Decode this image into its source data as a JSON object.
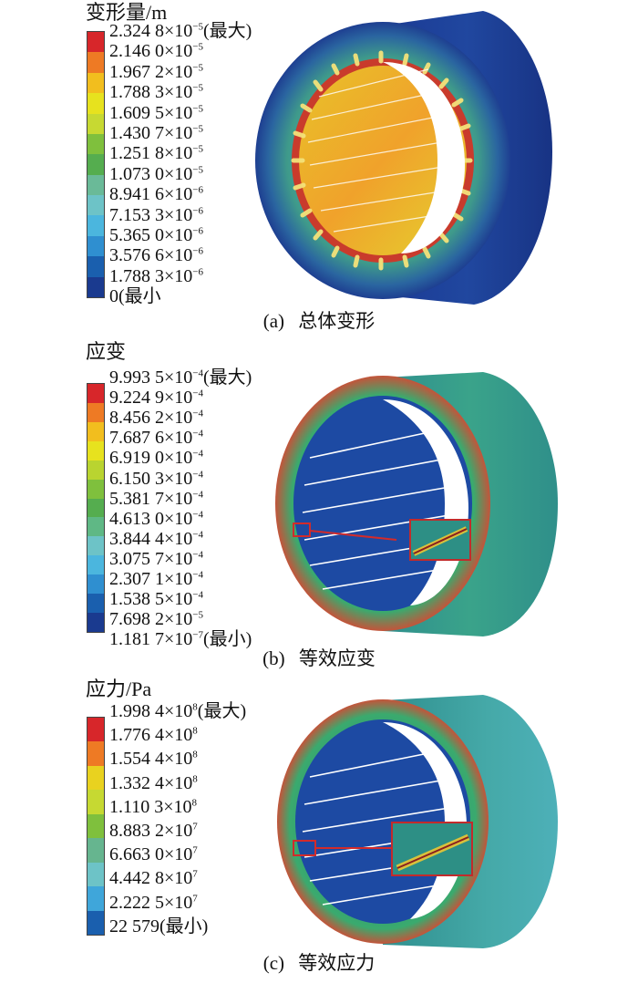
{
  "panels": [
    {
      "id": "a",
      "legend_title": "变形量/m",
      "caption_tag": "(a)",
      "caption_text": "总体变形",
      "legend_colors": [
        "#d7262a",
        "#ee7a24",
        "#f2be1e",
        "#e7e21e",
        "#c7d932",
        "#7fc03d",
        "#55ad4f",
        "#6aba98",
        "#6dc3c7",
        "#4bb6de",
        "#2f8fd0",
        "#1a5fae",
        "#1a3a8f"
      ],
      "legend": [
        {
          "value": "2.324 8×10",
          "exp": "−5",
          "suffix": "(最大)"
        },
        {
          "value": "2.146 0×10",
          "exp": "−5",
          "suffix": ""
        },
        {
          "value": "1.967 2×10",
          "exp": "−5",
          "suffix": ""
        },
        {
          "value": "1.788 3×10",
          "exp": "−5",
          "suffix": ""
        },
        {
          "value": "1.609 5×10",
          "exp": "−5",
          "suffix": ""
        },
        {
          "value": "1.430 7×10",
          "exp": "−5",
          "suffix": ""
        },
        {
          "value": "1.251 8×10",
          "exp": "−5",
          "suffix": ""
        },
        {
          "value": "1.073 0×10",
          "exp": "−5",
          "suffix": ""
        },
        {
          "value": "8.941 6×10",
          "exp": "−6",
          "suffix": ""
        },
        {
          "value": "7.153 3×10",
          "exp": "−6",
          "suffix": ""
        },
        {
          "value": "5.365 0×10",
          "exp": "−6",
          "suffix": ""
        },
        {
          "value": "3.576 6×10",
          "exp": "−6",
          "suffix": ""
        },
        {
          "value": "1.788 3×10",
          "exp": "−6",
          "suffix": ""
        },
        {
          "value": "0",
          "exp": "",
          "suffix": "(最小"
        }
      ]
    },
    {
      "id": "b",
      "legend_title": "应变",
      "caption_tag": "(b)",
      "caption_text": "等效应变",
      "legend_colors": [
        "#d7262a",
        "#ee7a24",
        "#f2be1e",
        "#e7e21e",
        "#b9d430",
        "#7fc03d",
        "#55ad4f",
        "#5fb885",
        "#6dc3c7",
        "#4bb6de",
        "#2f8fd0",
        "#1a5fae",
        "#1a3a8f"
      ],
      "legend": [
        {
          "value": "9.993 5×10",
          "exp": "−4",
          "suffix": "(最大)"
        },
        {
          "value": "9.224 9×10",
          "exp": "−4",
          "suffix": ""
        },
        {
          "value": "8.456 2×10",
          "exp": "−4",
          "suffix": ""
        },
        {
          "value": "7.687 6×10",
          "exp": "−4",
          "suffix": ""
        },
        {
          "value": "6.919 0×10",
          "exp": "−4",
          "suffix": ""
        },
        {
          "value": "6.150 3×10",
          "exp": "−4",
          "suffix": ""
        },
        {
          "value": "5.381 7×10",
          "exp": "−4",
          "suffix": ""
        },
        {
          "value": "4.613 0×10",
          "exp": "−4",
          "suffix": ""
        },
        {
          "value": "3.844 4×10",
          "exp": "−4",
          "suffix": ""
        },
        {
          "value": "3.075 7×10",
          "exp": "−4",
          "suffix": ""
        },
        {
          "value": "2.307 1×10",
          "exp": "−4",
          "suffix": ""
        },
        {
          "value": "1.538 5×10",
          "exp": "−4",
          "suffix": ""
        },
        {
          "value": "7.698 2×10",
          "exp": "−5",
          "suffix": ""
        },
        {
          "value": "1.181 7×10",
          "exp": "−7",
          "suffix": "(最小)"
        }
      ]
    },
    {
      "id": "c",
      "legend_title": "应力/Pa",
      "caption_tag": "(c)",
      "caption_text": "等效应力",
      "legend_colors": [
        "#d7262a",
        "#ee7a24",
        "#e9d21f",
        "#c6d932",
        "#7fc03d",
        "#66b58f",
        "#6dc3c7",
        "#3fa6da",
        "#1a5fae"
      ],
      "legend": [
        {
          "value": "1.998 4×10",
          "exp": "8",
          "suffix": "(最大)"
        },
        {
          "value": "1.776 4×10",
          "exp": "8",
          "suffix": ""
        },
        {
          "value": "1.554 4×10",
          "exp": "8",
          "suffix": ""
        },
        {
          "value": "1.332 4×10",
          "exp": "8",
          "suffix": ""
        },
        {
          "value": "1.110 3×10",
          "exp": "8",
          "suffix": ""
        },
        {
          "value": "8.883 2×10",
          "exp": "7",
          "suffix": ""
        },
        {
          "value": "6.663 0×10",
          "exp": "7",
          "suffix": ""
        },
        {
          "value": "4.442 8×10",
          "exp": "7",
          "suffix": ""
        },
        {
          "value": "2.222 5×10",
          "exp": "7",
          "suffix": ""
        },
        {
          "value": "22 579",
          "exp": "",
          "suffix": "(最小)"
        }
      ]
    }
  ]
}
